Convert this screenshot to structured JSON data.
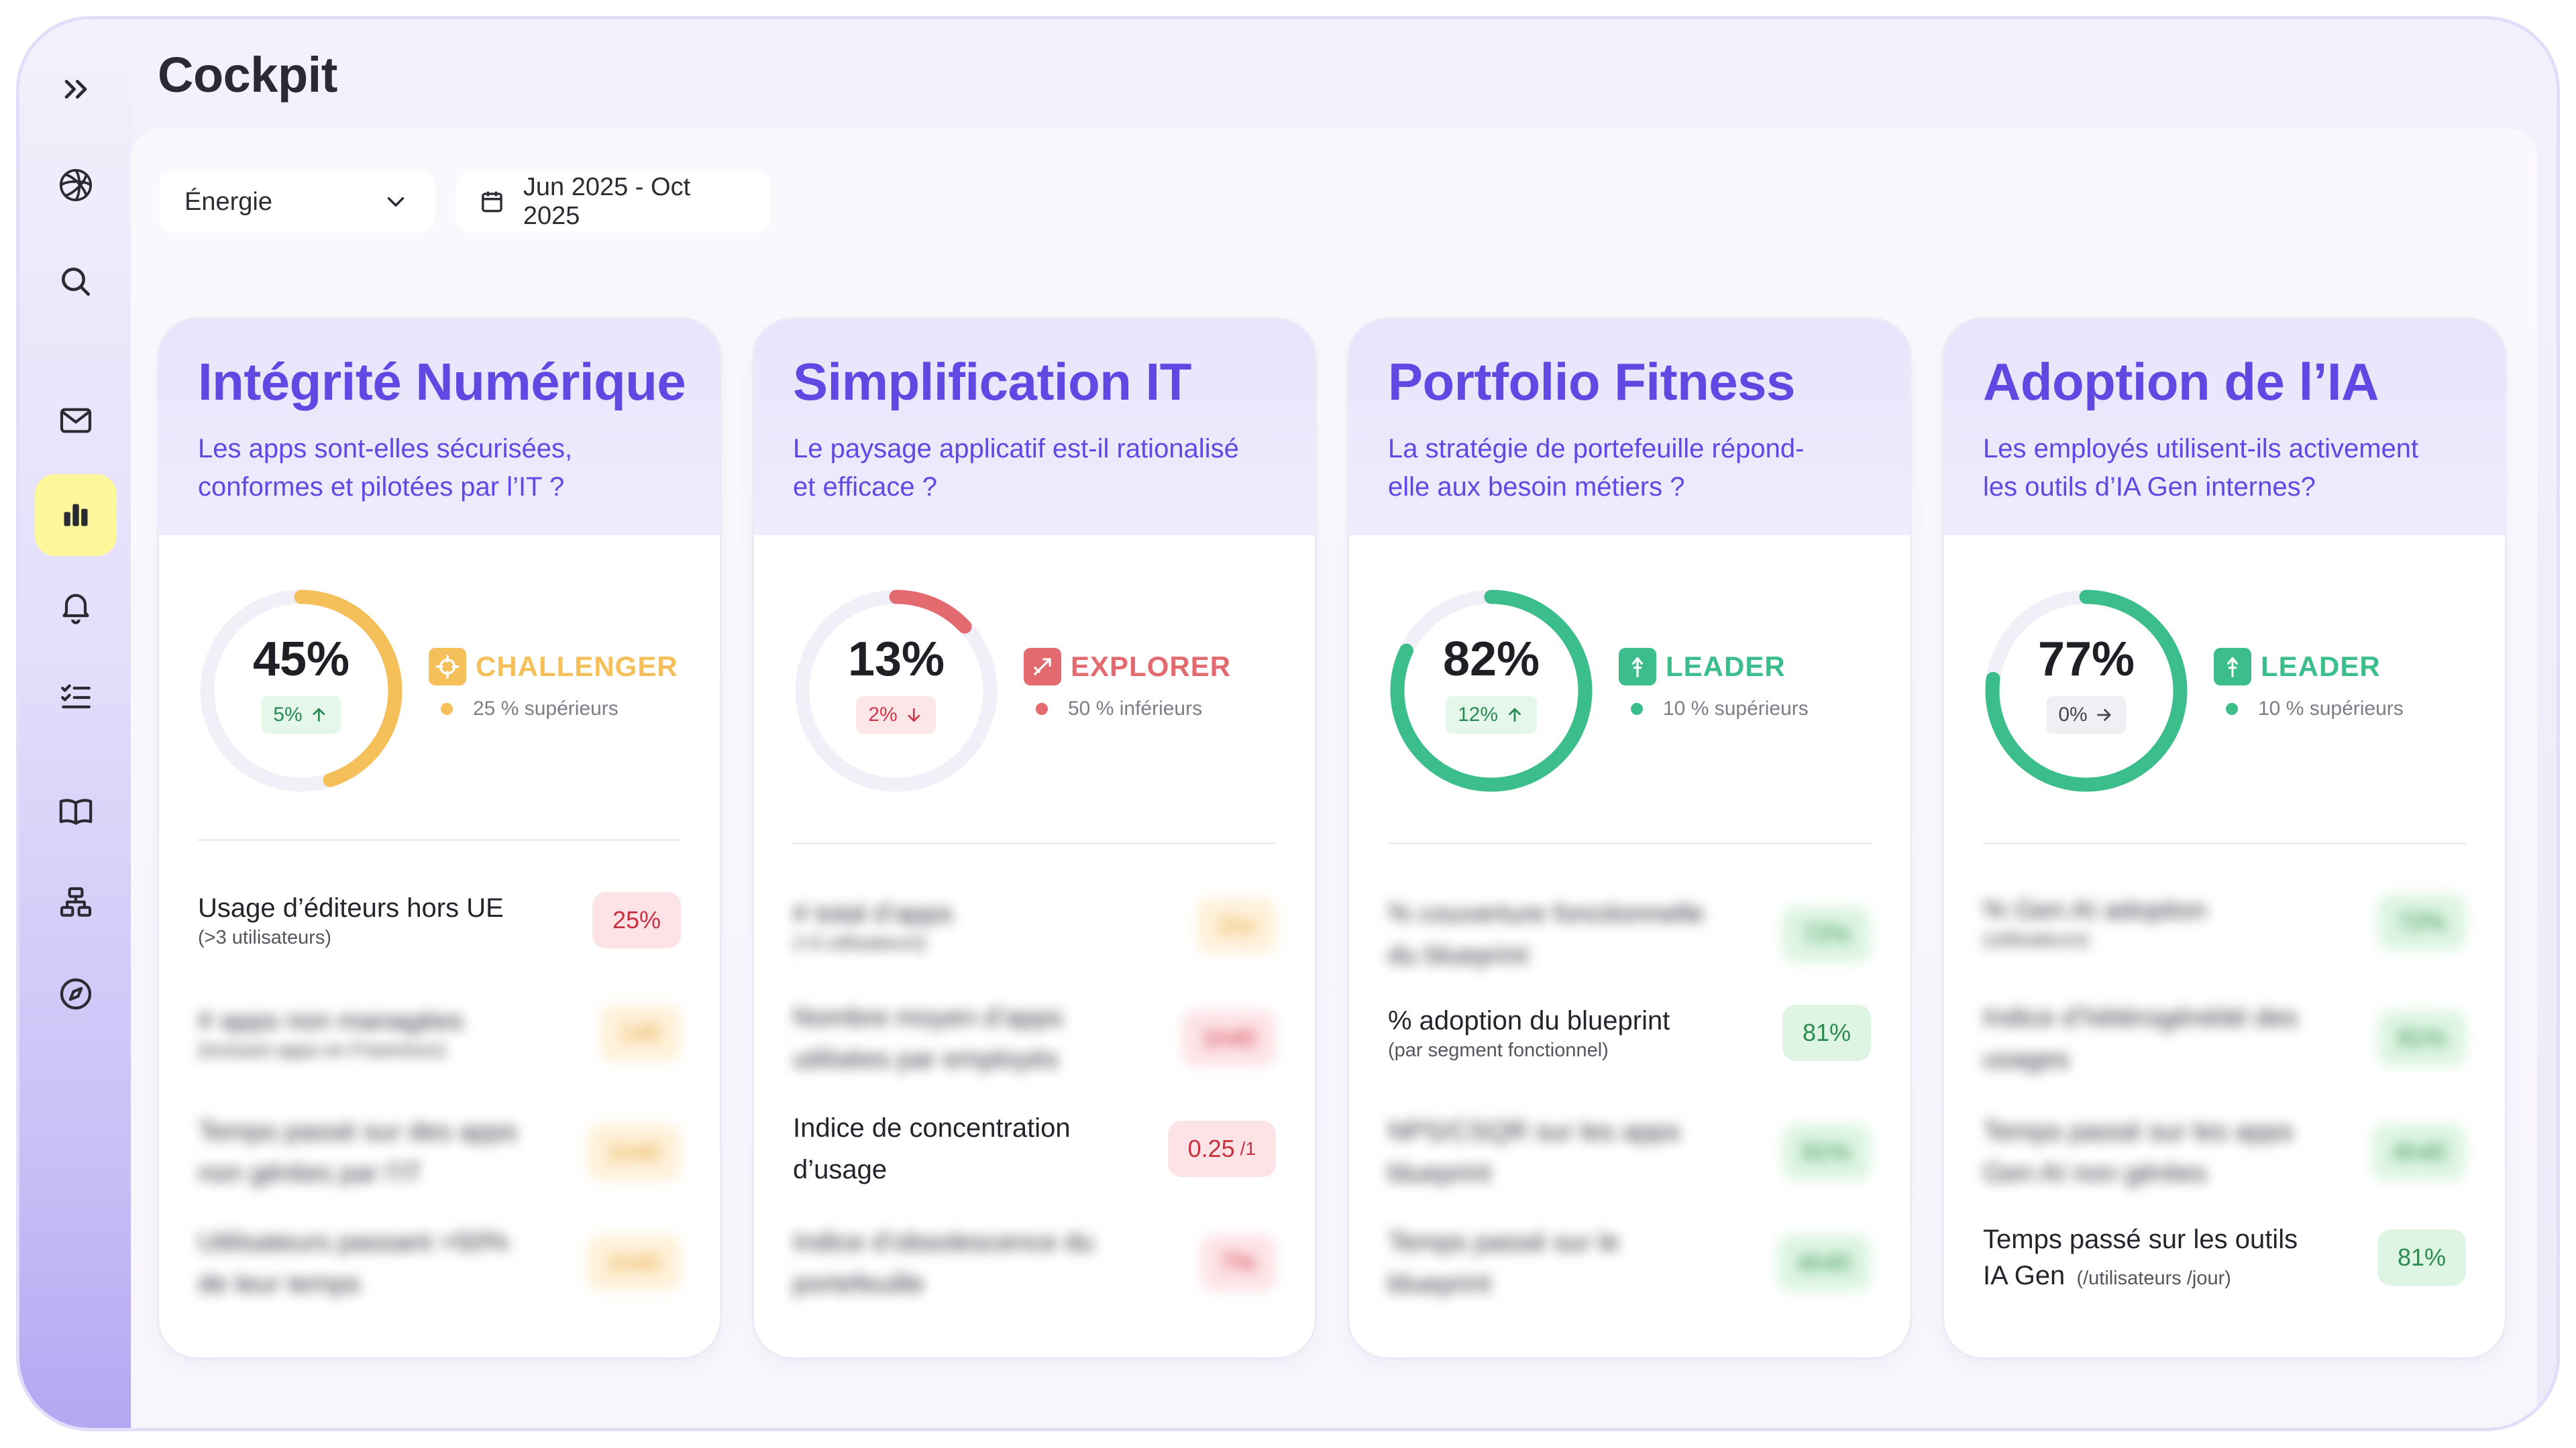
{
  "app": {
    "title": "Cockpit"
  },
  "sidebar": {
    "items": [
      {
        "icon": "expand-chevrons-icon"
      },
      {
        "icon": "logo-icon"
      },
      {
        "icon": "search-icon"
      },
      {
        "icon": "mail-icon"
      },
      {
        "icon": "bar-chart-icon",
        "active": true
      },
      {
        "icon": "bell-icon"
      },
      {
        "icon": "checklist-icon"
      },
      {
        "icon": "book-icon"
      },
      {
        "icon": "hierarchy-icon"
      },
      {
        "icon": "compass-icon"
      }
    ]
  },
  "filters": {
    "sector": "Énergie",
    "date_range": "Jun 2025 - Oct 2025"
  },
  "colors": {
    "accent": "#6248e2",
    "challenger": "#f5bf5a",
    "explorer": "#e36a6f",
    "leader": "#3cbd8c",
    "active_nav": "#fbf79a"
  },
  "cards": [
    {
      "title": "Intégrité Numérique",
      "subtitle_l1": "Les apps sont-elles sécurisées,",
      "subtitle_l2": "conformes et pilotées par l’IT ?",
      "score": "45%",
      "score_fraction": 0.45,
      "delta": "5%",
      "delta_dir": "up",
      "status": "CHALLENGER",
      "status_detail": "25 % supérieurs",
      "metrics": [
        {
          "label_l1": "Usage d’éditeurs hors UE",
          "small": "(>3 utilisateurs)",
          "value": "25%",
          "tone": "red",
          "blurred": false
        },
        {
          "label_l1": "# apps non managées",
          "small": "(incluant apps en Freemium)",
          "value": "140",
          "tone": "orange",
          "blurred": true
        },
        {
          "label_l1": "Temps passé sur des apps",
          "label_l2": "non gérées par l’IT",
          "value": "1h40",
          "tone": "orange",
          "blurred": true
        },
        {
          "label_l1": "Utilisateurs passant >50%",
          "label_l2": "de leur temps",
          "value": "1h40",
          "tone": "orange",
          "blurred": true
        }
      ]
    },
    {
      "title": "Simplification IT",
      "subtitle_l1": "Le paysage applicatif est-il rationalisé",
      "subtitle_l2": "et efficace ?",
      "score": "13%",
      "score_fraction": 0.13,
      "delta": "2%",
      "delta_dir": "down",
      "status": "EXPLORER",
      "status_detail": "50 % inférieurs",
      "metrics": [
        {
          "label_l1": "# total d’apps",
          "small": "(>3 utilisateurs)",
          "value": "1hx",
          "tone": "orange",
          "blurred": true
        },
        {
          "label_l1": "Nombre moyen d’apps",
          "label_l2": "utilisées par employés",
          "value": "1h40",
          "tone": "red",
          "blurred": true
        },
        {
          "label_l1": "Indice de concentration",
          "label_l2": "d’usage",
          "value": "0.25",
          "value_unit": "/1",
          "tone": "red",
          "blurred": false
        },
        {
          "label_l1": "Indice d’obsolescence du",
          "label_l2": "portefeuille",
          "value": "7%",
          "tone": "red",
          "blurred": true
        }
      ]
    },
    {
      "title": "Portfolio Fitness",
      "subtitle_l1": "La stratégie de portefeuille répond-",
      "subtitle_l2": "elle aux besoin métiers ?",
      "score": "82%",
      "score_fraction": 0.82,
      "delta": "12%",
      "delta_dir": "up",
      "status": "LEADER",
      "status_detail": "10 % supérieurs",
      "metrics": [
        {
          "label_l1": "% couverture fonctionnelle",
          "label_l2": "du blueprint",
          "value": "72%",
          "tone": "green",
          "blurred": true
        },
        {
          "label_l1": "% adoption du blueprint",
          "small": "(par segment fonctionnel)",
          "value": "81%",
          "tone": "green",
          "blurred": false
        },
        {
          "label_l1": "NPS/CSQR sur les apps",
          "label_l2": "blueprint",
          "value": "81%",
          "tone": "green",
          "blurred": true
        },
        {
          "label_l1": "Temps passé sur le",
          "label_l2": "blueprint",
          "value": "4h40",
          "tone": "green",
          "blurred": true
        }
      ]
    },
    {
      "title": "Adoption de l’IA",
      "subtitle_l1": "Les employés utilisent-ils activement",
      "subtitle_l2": "les outils d’IA Gen internes?",
      "score": "77%",
      "score_fraction": 0.77,
      "delta": "0%",
      "delta_dir": "flat",
      "status": "LEADER",
      "status_detail": "10 % supérieurs",
      "metrics": [
        {
          "label_l1": "% Gen AI adoption",
          "small": "(utilisateurs)",
          "value": "72%",
          "tone": "green",
          "blurred": true
        },
        {
          "label_l1": "Indice d’hétérogénéité des",
          "label_l2": "usages",
          "value": "81%",
          "tone": "green",
          "blurred": true
        },
        {
          "label_l1": "Temps passé sur les apps",
          "label_l2": "Gen AI non gérées",
          "value": "4h40",
          "tone": "green",
          "blurred": true
        },
        {
          "label_l1": "Temps passé sur les outils",
          "label_l2": "IA Gen",
          "small_inline": "(/utilisateurs /jour)",
          "value": "81%",
          "tone": "green",
          "blurred": false
        }
      ]
    }
  ]
}
